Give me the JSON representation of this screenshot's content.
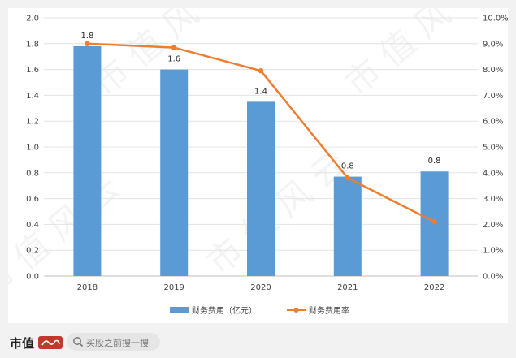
{
  "chart_data": {
    "type": "bar",
    "categories": [
      "2018",
      "2019",
      "2020",
      "2021",
      "2022"
    ],
    "series": [
      {
        "name": "财务费用（亿元）",
        "type": "bar",
        "axis": "left",
        "values": [
          1.78,
          1.6,
          1.35,
          0.77,
          0.81
        ],
        "labels": [
          "1.8",
          "1.6",
          "1.4",
          "0.8",
          "0.8"
        ],
        "color": "#5b9bd5"
      },
      {
        "name": "财务费用率",
        "type": "line",
        "axis": "right",
        "values": [
          9.0,
          8.85,
          7.95,
          3.8,
          2.1
        ],
        "color": "#ed7d31"
      }
    ],
    "y_left": {
      "min": 0,
      "max": 2.0,
      "ticks": [
        "0.0",
        "0.2",
        "0.4",
        "0.6",
        "0.8",
        "1.0",
        "1.2",
        "1.4",
        "1.6",
        "1.8",
        "2.0"
      ]
    },
    "y_right": {
      "min": 0,
      "max": 10,
      "ticks": [
        "0.0%",
        "1.0%",
        "2.0%",
        "3.0%",
        "4.0%",
        "5.0%",
        "6.0%",
        "7.0%",
        "8.0%",
        "9.0%",
        "10.0%"
      ]
    },
    "grid": true,
    "legend": "bottom"
  },
  "footer": {
    "brand": "市值",
    "search_placeholder": "买股之前搜一搜"
  }
}
